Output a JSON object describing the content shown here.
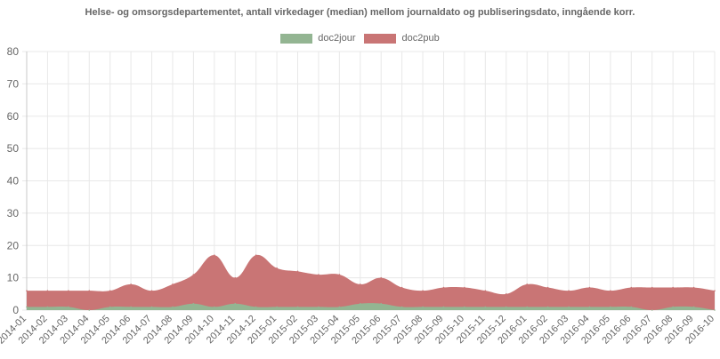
{
  "chart_data": {
    "type": "area",
    "title": "Helse- og omsorgsdepartementet, antall virkedager (median) mellom journaldato og publiseringsdato, inngående korr.",
    "xlabel": "",
    "ylabel": "",
    "ylim": [
      0,
      80
    ],
    "yticks": [
      0,
      10,
      20,
      30,
      40,
      50,
      60,
      70,
      80
    ],
    "grid": true,
    "legend_position": "top",
    "categories": [
      "2014-01",
      "2014-02",
      "2014-03",
      "2014-04",
      "2014-05",
      "2014-06",
      "2014-07",
      "2014-08",
      "2014-09",
      "2014-10",
      "2014-11",
      "2014-12",
      "2015-01",
      "2015-02",
      "2015-03",
      "2015-04",
      "2015-05",
      "2015-06",
      "2015-07",
      "2015-08",
      "2015-09",
      "2015-10",
      "2015-11",
      "2015-12",
      "2016-01",
      "2016-02",
      "2016-03",
      "2016-04",
      "2016-05",
      "2016-06",
      "2016-07",
      "2016-08",
      "2016-09",
      "2016-10"
    ],
    "series": [
      {
        "name": "doc2jour",
        "color": "#93b592",
        "values": [
          1,
          1,
          1,
          0,
          1,
          1,
          1,
          1,
          2,
          1,
          2,
          1,
          1,
          1,
          1,
          1,
          2,
          2,
          1,
          1,
          1,
          1,
          1,
          1,
          1,
          1,
          1,
          1,
          1,
          1,
          0,
          1,
          1,
          0
        ]
      },
      {
        "name": "doc2pub",
        "color": "#c97575",
        "values": [
          6,
          6,
          6,
          6,
          6,
          8,
          6,
          8,
          11,
          17,
          10,
          17,
          13,
          12,
          11,
          11,
          8,
          10,
          7,
          6,
          7,
          7,
          6,
          5,
          8,
          7,
          6,
          7,
          6,
          7,
          7,
          7,
          7,
          6
        ]
      }
    ]
  }
}
